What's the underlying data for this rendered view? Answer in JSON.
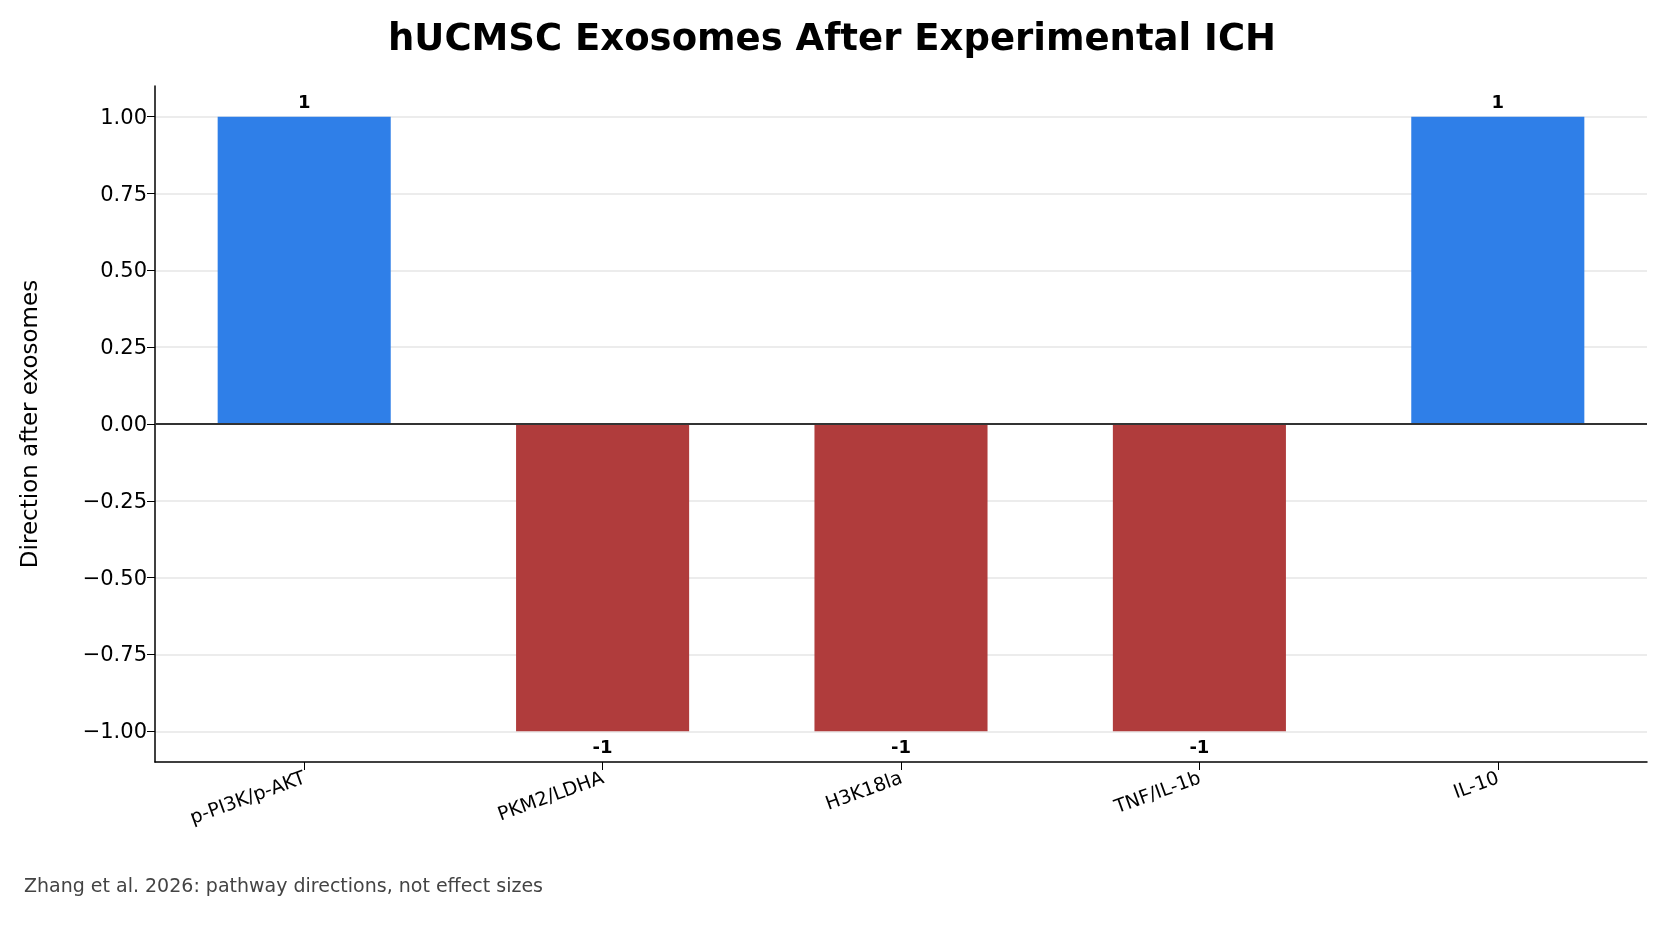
{
  "chart_data": {
    "type": "bar",
    "title": "hUCMSC Exosomes After Experimental ICH",
    "ylabel": "Direction after exosomes",
    "categories": [
      "p-PI3K/p-AKT",
      "PKM2/LDHA",
      "H3K18la",
      "TNF/IL-1b",
      "IL-10"
    ],
    "values": [
      1,
      -1,
      -1,
      -1,
      1
    ],
    "colors": [
      "#2f7fe8",
      "#b03c3c",
      "#b03c3c",
      "#b03c3c",
      "#2f7fe8"
    ],
    "ylim": [
      -1.1,
      1.1
    ],
    "yticks": [
      {
        "value": -1,
        "label": "−1.00"
      },
      {
        "value": -0.75,
        "label": "−0.75"
      },
      {
        "value": -0.5,
        "label": "−0.50"
      },
      {
        "value": -0.25,
        "label": "−0.25"
      },
      {
        "value": 0,
        "label": "0.00"
      },
      {
        "value": 0.25,
        "label": "0.25"
      },
      {
        "value": 0.5,
        "label": "0.50"
      },
      {
        "value": 0.75,
        "label": "0.75"
      },
      {
        "value": 1,
        "label": "1.00"
      }
    ],
    "ref_lines": [
      {
        "axis": "y",
        "value": 0,
        "color": "#333333"
      }
    ],
    "grid": "y",
    "data_labels": true,
    "annotations": [
      "Zhang et al. 2026: pathway directions, not effect sizes"
    ]
  }
}
